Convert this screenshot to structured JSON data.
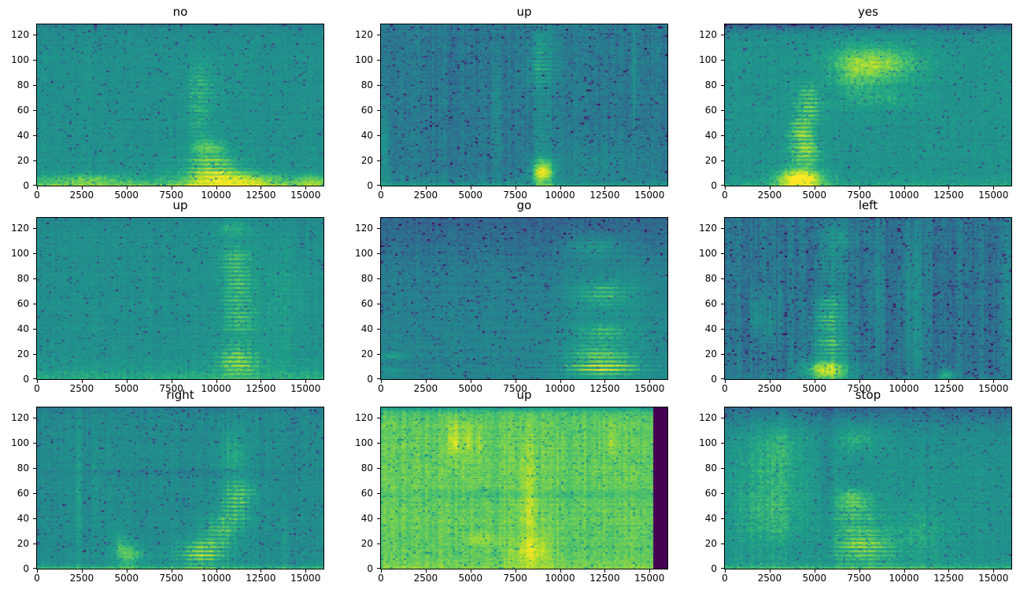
{
  "figure": {
    "background": "#ffffff",
    "colormap": "viridis",
    "viridis_stops": [
      "#440154",
      "#482878",
      "#3e4a89",
      "#31688e",
      "#26828e",
      "#21918c",
      "#1f9e89",
      "#35b779",
      "#6ece58",
      "#b5de2b",
      "#fde725"
    ],
    "xlim": [
      0,
      16000
    ],
    "ylim": [
      0,
      128
    ],
    "xticks": [
      0,
      2500,
      5000,
      7500,
      10000,
      12500,
      15000
    ],
    "yticks": [
      0,
      20,
      40,
      60,
      80,
      100,
      120
    ],
    "grid_rows": 3,
    "grid_cols": 3
  },
  "chart_data": [
    {
      "type": "heatmap",
      "title": "no",
      "x_range": [
        0,
        16000
      ],
      "y_range": [
        0,
        128
      ],
      "colormap": "viridis",
      "render": {
        "seed": 11,
        "base": 0.5,
        "noise": 0.06,
        "row_noise": 0.025,
        "col_noise": 0.02,
        "speckle": 0.05,
        "bottom": {
          "amp": 0.28,
          "falloff": 5
        },
        "top": {
          "amp": 0.1,
          "falloff": 7
        },
        "blobs": [
          {
            "cx": 9200,
            "cy": 78,
            "rx": 900,
            "ry": 24,
            "amp": 0.22,
            "st": 1,
            "ph": 0.5
          },
          {
            "cx": 9000,
            "cy": 50,
            "rx": 750,
            "ry": 16,
            "amp": 0.14,
            "st": 1,
            "ph": 2.0
          },
          {
            "cx": 9600,
            "cy": 31,
            "rx": 1000,
            "ry": 7,
            "amp": 0.22
          },
          {
            "cx": 9800,
            "cy": 15,
            "rx": 1500,
            "ry": 11,
            "amp": 0.42,
            "st": 1,
            "ph": 1.0
          },
          {
            "cx": 11000,
            "cy": 4,
            "rx": 2800,
            "ry": 7,
            "amp": 0.32
          },
          {
            "cx": 2800,
            "cy": 5,
            "rx": 2600,
            "ry": 5,
            "amp": 0.18
          },
          {
            "cx": 15500,
            "cy": 4,
            "rx": 1000,
            "ry": 5,
            "amp": 0.18
          }
        ]
      }
    },
    {
      "type": "heatmap",
      "title": "up",
      "x_range": [
        0,
        16000
      ],
      "y_range": [
        0,
        128
      ],
      "colormap": "viridis",
      "render": {
        "seed": 22,
        "base": 0.37,
        "noise": 0.06,
        "row_noise": 0.02,
        "col_noise": 0.035,
        "speckle": 0.05,
        "bottom": {
          "amp": 0.22,
          "falloff": 3
        },
        "top": {
          "amp": 0.0,
          "falloff": 5
        },
        "blobs": [
          {
            "cx": 120,
            "cy": 25,
            "rx": 350,
            "ry": 35,
            "amp": 0.14
          },
          {
            "cx": 6450,
            "cy": 55,
            "rx": 260,
            "ry": 55,
            "amp": 0.17,
            "st": 1,
            "ph": 0.0
          },
          {
            "cx": 9050,
            "cy": 11,
            "rx": 650,
            "ry": 11,
            "amp": 0.58
          },
          {
            "cx": 9100,
            "cy": 45,
            "rx": 450,
            "ry": 30,
            "amp": 0.22,
            "st": 1,
            "ph": 1.2
          },
          {
            "cx": 8950,
            "cy": 93,
            "rx": 750,
            "ry": 17,
            "amp": 0.32,
            "st": 1,
            "ph": 2.1
          },
          {
            "cx": 9100,
            "cy": 115,
            "rx": 500,
            "ry": 10,
            "amp": 0.18
          },
          {
            "cx": 14150,
            "cy": 90,
            "rx": 180,
            "ry": 45,
            "amp": 0.12
          },
          {
            "cx": 12500,
            "cy": 20,
            "rx": 2500,
            "ry": 12,
            "amp": 0.07
          }
        ]
      }
    },
    {
      "type": "heatmap",
      "title": "yes",
      "x_range": [
        0,
        16000
      ],
      "y_range": [
        0,
        128
      ],
      "colormap": "viridis",
      "render": {
        "seed": 33,
        "base": 0.52,
        "noise": 0.06,
        "row_noise": 0.02,
        "col_noise": 0.02,
        "speckle": 0.05,
        "bottom": {
          "amp": 0.12,
          "falloff": 4
        },
        "top": {
          "amp": 0.3,
          "falloff": 5
        },
        "blobs": [
          {
            "cx": 4200,
            "cy": 5,
            "rx": 1300,
            "ry": 9,
            "amp": 0.52
          },
          {
            "cx": 4500,
            "cy": 27,
            "rx": 850,
            "ry": 11,
            "amp": 0.45,
            "st": 1,
            "ph": 0.8
          },
          {
            "cx": 4300,
            "cy": 44,
            "rx": 700,
            "ry": 9,
            "amp": 0.4,
            "st": 1,
            "ph": 1.6
          },
          {
            "cx": 4700,
            "cy": 60,
            "rx": 800,
            "ry": 9,
            "amp": 0.3,
            "st": 1,
            "ph": 2.4
          },
          {
            "cx": 4600,
            "cy": 74,
            "rx": 700,
            "ry": 8,
            "amp": 0.24,
            "st": 1,
            "ph": 3.0
          },
          {
            "cx": 8600,
            "cy": 96,
            "rx": 2400,
            "ry": 15,
            "amp": 0.3
          },
          {
            "cx": 7200,
            "cy": 88,
            "rx": 1200,
            "ry": 25,
            "amp": 0.12
          },
          {
            "cx": 9000,
            "cy": 70,
            "rx": 1800,
            "ry": 8,
            "amp": 0.1
          }
        ]
      }
    },
    {
      "type": "heatmap",
      "title": "up",
      "x_range": [
        0,
        16000
      ],
      "y_range": [
        0,
        128
      ],
      "colormap": "viridis",
      "render": {
        "seed": 44,
        "base": 0.49,
        "noise": 0.055,
        "row_noise": 0.025,
        "col_noise": 0.025,
        "speckle": 0.04,
        "bottom": {
          "amp": 0.18,
          "falloff": 9
        },
        "top": {
          "amp": 0.06,
          "falloff": 6
        },
        "blobs": [
          {
            "cx": 11200,
            "cy": 15,
            "rx": 1150,
            "ry": 13,
            "amp": 0.42,
            "st": 1,
            "ph": 0.6
          },
          {
            "cx": 11300,
            "cy": 45,
            "rx": 1000,
            "ry": 12,
            "amp": 0.28,
            "st": 1,
            "ph": 1.8
          },
          {
            "cx": 11200,
            "cy": 72,
            "rx": 950,
            "ry": 18,
            "amp": 0.3,
            "st": 1,
            "ph": 2.6
          },
          {
            "cx": 11100,
            "cy": 96,
            "rx": 1000,
            "ry": 12,
            "amp": 0.26,
            "st": 1,
            "ph": 3.4
          },
          {
            "cx": 11000,
            "cy": 120,
            "rx": 900,
            "ry": 8,
            "amp": 0.18
          },
          {
            "cx": 13600,
            "cy": 60,
            "rx": 1700,
            "ry": 55,
            "amp": 0.08
          },
          {
            "cx": 14800,
            "cy": 112,
            "rx": 160,
            "ry": 18,
            "amp": -0.1
          }
        ]
      }
    },
    {
      "type": "heatmap",
      "title": "go",
      "x_range": [
        0,
        16000
      ],
      "y_range": [
        0,
        128
      ],
      "colormap": "viridis",
      "render": {
        "seed": 55,
        "base": 0.43,
        "noise": 0.05,
        "row_noise": 0.03,
        "col_noise": 0.02,
        "speckle": 0.05,
        "bottom": {
          "amp": 0.0,
          "falloff": 3
        },
        "top": {
          "amp": 0.14,
          "falloff": 45
        },
        "blobs": [
          {
            "cx": 600,
            "cy": 18,
            "rx": 900,
            "ry": 3,
            "amp": 0.16
          },
          {
            "cx": 500,
            "cy": 7,
            "rx": 700,
            "ry": 3,
            "amp": 0.12
          },
          {
            "cx": 12400,
            "cy": 10,
            "rx": 2200,
            "ry": 10,
            "amp": 0.52,
            "st": 1,
            "ph": 0.3
          },
          {
            "cx": 12100,
            "cy": 23,
            "rx": 1800,
            "ry": 6,
            "amp": 0.25,
            "st": 1,
            "ph": 1.0
          },
          {
            "cx": 12400,
            "cy": 37,
            "rx": 1700,
            "ry": 7,
            "amp": 0.3,
            "st": 1,
            "ph": 1.7
          },
          {
            "cx": 12400,
            "cy": 68,
            "rx": 1700,
            "ry": 9,
            "amp": 0.3,
            "st": 1,
            "ph": 2.3
          },
          {
            "cx": 11900,
            "cy": 105,
            "rx": 1400,
            "ry": 8,
            "amp": 0.25,
            "st": 1,
            "ph": 3.0
          },
          {
            "cx": 12900,
            "cy": 55,
            "rx": 2600,
            "ry": 50,
            "amp": 0.1
          }
        ]
      }
    },
    {
      "type": "heatmap",
      "title": "left",
      "x_range": [
        0,
        16000
      ],
      "y_range": [
        0,
        128
      ],
      "colormap": "viridis",
      "render": {
        "seed": 66,
        "base": 0.35,
        "noise": 0.06,
        "row_noise": 0.02,
        "col_noise": 0.05,
        "speckle": 0.06,
        "bottom": {
          "amp": 0.08,
          "falloff": 3
        },
        "top": {
          "amp": 0.0,
          "falloff": 5
        },
        "blobs": [
          {
            "cx": 1800,
            "cy": 50,
            "rx": 350,
            "ry": 18,
            "amp": 0.14
          },
          {
            "cx": 2500,
            "cy": 45,
            "rx": 250,
            "ry": 20,
            "amp": 0.12
          },
          {
            "cx": 3100,
            "cy": 60,
            "rx": 200,
            "ry": 40,
            "amp": 0.1
          },
          {
            "cx": 5700,
            "cy": 7,
            "rx": 1300,
            "ry": 9,
            "amp": 0.6
          },
          {
            "cx": 5900,
            "cy": 27,
            "rx": 1000,
            "ry": 10,
            "amp": 0.5,
            "st": 1,
            "ph": 0.5
          },
          {
            "cx": 5800,
            "cy": 46,
            "rx": 950,
            "ry": 10,
            "amp": 0.45,
            "st": 1,
            "ph": 1.3
          },
          {
            "cx": 5900,
            "cy": 60,
            "rx": 900,
            "ry": 7,
            "amp": 0.3,
            "st": 1,
            "ph": 2.0
          },
          {
            "cx": 6000,
            "cy": 88,
            "rx": 850,
            "ry": 28,
            "amp": 0.17,
            "st": 1,
            "ph": 2.7
          },
          {
            "cx": 6300,
            "cy": 113,
            "rx": 900,
            "ry": 12,
            "amp": 0.12
          },
          {
            "cx": 8600,
            "cy": 64,
            "rx": 280,
            "ry": 62,
            "amp": 0.13
          },
          {
            "cx": 10600,
            "cy": 75,
            "rx": 600,
            "ry": 45,
            "amp": 0.14
          },
          {
            "cx": 10700,
            "cy": 25,
            "rx": 500,
            "ry": 20,
            "amp": 0.12
          },
          {
            "cx": 12400,
            "cy": 3,
            "rx": 420,
            "ry": 4,
            "amp": 0.34
          },
          {
            "cx": 15850,
            "cy": 60,
            "rx": 250,
            "ry": 60,
            "amp": 0.1
          }
        ]
      }
    },
    {
      "type": "heatmap",
      "title": "right",
      "x_range": [
        0,
        16000
      ],
      "y_range": [
        0,
        128
      ],
      "colormap": "viridis",
      "render": {
        "seed": 77,
        "base": 0.47,
        "noise": 0.055,
        "row_noise": 0.025,
        "col_noise": 0.035,
        "speckle": 0.05,
        "bottom": {
          "amp": 0.25,
          "falloff": 2.5
        },
        "top": {
          "amp": 0.1,
          "falloff": 6
        },
        "blobs": [
          {
            "cx": 2300,
            "cy": 60,
            "rx": 140,
            "ry": 60,
            "amp": 0.13
          },
          {
            "cx": 3300,
            "cy": 65,
            "rx": 150,
            "ry": 30,
            "amp": 0.08
          },
          {
            "cx": 5200,
            "cy": 12,
            "rx": 800,
            "ry": 10,
            "amp": 0.28
          },
          {
            "cx": 4600,
            "cy": 20,
            "rx": 300,
            "ry": 12,
            "amp": 0.15
          },
          {
            "cx": 9200,
            "cy": 13,
            "rx": 1400,
            "ry": 11,
            "amp": 0.48,
            "st": 1,
            "ph": 0.4
          },
          {
            "cx": 10300,
            "cy": 30,
            "rx": 1100,
            "ry": 12,
            "amp": 0.32,
            "st": 1,
            "ph": 1.1
          },
          {
            "cx": 11000,
            "cy": 48,
            "rx": 1000,
            "ry": 14,
            "amp": 0.3,
            "st": 1,
            "ph": 1.9
          },
          {
            "cx": 11400,
            "cy": 62,
            "rx": 900,
            "ry": 10,
            "amp": 0.22,
            "st": 1,
            "ph": 2.5
          },
          {
            "cx": 10900,
            "cy": 90,
            "rx": 800,
            "ry": 22,
            "amp": 0.18
          },
          {
            "cx": 8000,
            "cy": 76,
            "rx": 8000,
            "ry": 4,
            "amp": -0.07
          },
          {
            "cx": 13900,
            "cy": 25,
            "rx": 160,
            "ry": 25,
            "amp": 0.1
          }
        ]
      }
    },
    {
      "type": "heatmap",
      "title": "up",
      "x_range": [
        0,
        16000
      ],
      "y_range": [
        0,
        128
      ],
      "colormap": "viridis",
      "render": {
        "seed": 88,
        "base": 0.78,
        "noise": 0.045,
        "row_noise": 0.02,
        "col_noise": 0.03,
        "speckle": 0.045,
        "bottom": {
          "amp": 0.08,
          "falloff": 3
        },
        "top": {
          "amp": 0.28,
          "falloff": 2.5
        },
        "blobs": [
          {
            "cx": 4100,
            "cy": 103,
            "rx": 350,
            "ry": 17,
            "amp": 0.16
          },
          {
            "cx": 4900,
            "cy": 102,
            "rx": 220,
            "ry": 16,
            "amp": 0.13
          },
          {
            "cx": 5500,
            "cy": 100,
            "rx": 160,
            "ry": 20,
            "amp": 0.11
          },
          {
            "cx": 8400,
            "cy": 14,
            "rx": 1000,
            "ry": 12,
            "amp": 0.17
          },
          {
            "cx": 8300,
            "cy": 45,
            "rx": 500,
            "ry": 22,
            "amp": 0.1
          },
          {
            "cx": 8200,
            "cy": 80,
            "rx": 500,
            "ry": 30,
            "amp": 0.07
          },
          {
            "cx": 12900,
            "cy": 103,
            "rx": 220,
            "ry": 16,
            "amp": 0.11
          },
          {
            "cx": 5600,
            "cy": 23,
            "rx": 900,
            "ry": 6,
            "amp": 0.1
          },
          {
            "cx": 8000,
            "cy": 58,
            "rx": 8000,
            "ry": 3,
            "amp": -0.05
          },
          {
            "cx": 8000,
            "cy": 17,
            "rx": 8000,
            "ry": 2.5,
            "amp": -0.04
          }
        ],
        "rects": [
          {
            "x0": 15280,
            "x1": 16000,
            "y0": 0,
            "y1": 128,
            "value": 0.0
          }
        ]
      }
    },
    {
      "type": "heatmap",
      "title": "stop",
      "x_range": [
        0,
        16000
      ],
      "y_range": [
        0,
        128
      ],
      "colormap": "viridis",
      "render": {
        "seed": 99,
        "base": 0.52,
        "noise": 0.06,
        "row_noise": 0.025,
        "col_noise": 0.03,
        "speckle": 0.05,
        "bottom": {
          "amp": 0.2,
          "falloff": 3
        },
        "top": {
          "amp": 0.24,
          "falloff": 14
        },
        "blobs": [
          {
            "cx": 2700,
            "cy": 70,
            "rx": 2000,
            "ry": 48,
            "amp": 0.13
          },
          {
            "cx": 3000,
            "cy": 100,
            "rx": 1500,
            "ry": 18,
            "amp": 0.1
          },
          {
            "cx": 2500,
            "cy": 40,
            "rx": 1800,
            "ry": 25,
            "amp": 0.08
          },
          {
            "cx": 7700,
            "cy": 18,
            "rx": 1700,
            "ry": 14,
            "amp": 0.42,
            "st": 1,
            "ph": 0.7
          },
          {
            "cx": 7300,
            "cy": 45,
            "rx": 1300,
            "ry": 13,
            "amp": 0.28,
            "st": 1,
            "ph": 1.5
          },
          {
            "cx": 7100,
            "cy": 57,
            "rx": 900,
            "ry": 7,
            "amp": 0.18
          },
          {
            "cx": 7500,
            "cy": 104,
            "rx": 1300,
            "ry": 12,
            "amp": 0.16
          },
          {
            "cx": 11000,
            "cy": 28,
            "rx": 1600,
            "ry": 22,
            "amp": 0.1
          },
          {
            "cx": 5600,
            "cy": 70,
            "rx": 280,
            "ry": 60,
            "amp": -0.08
          }
        ]
      }
    }
  ]
}
